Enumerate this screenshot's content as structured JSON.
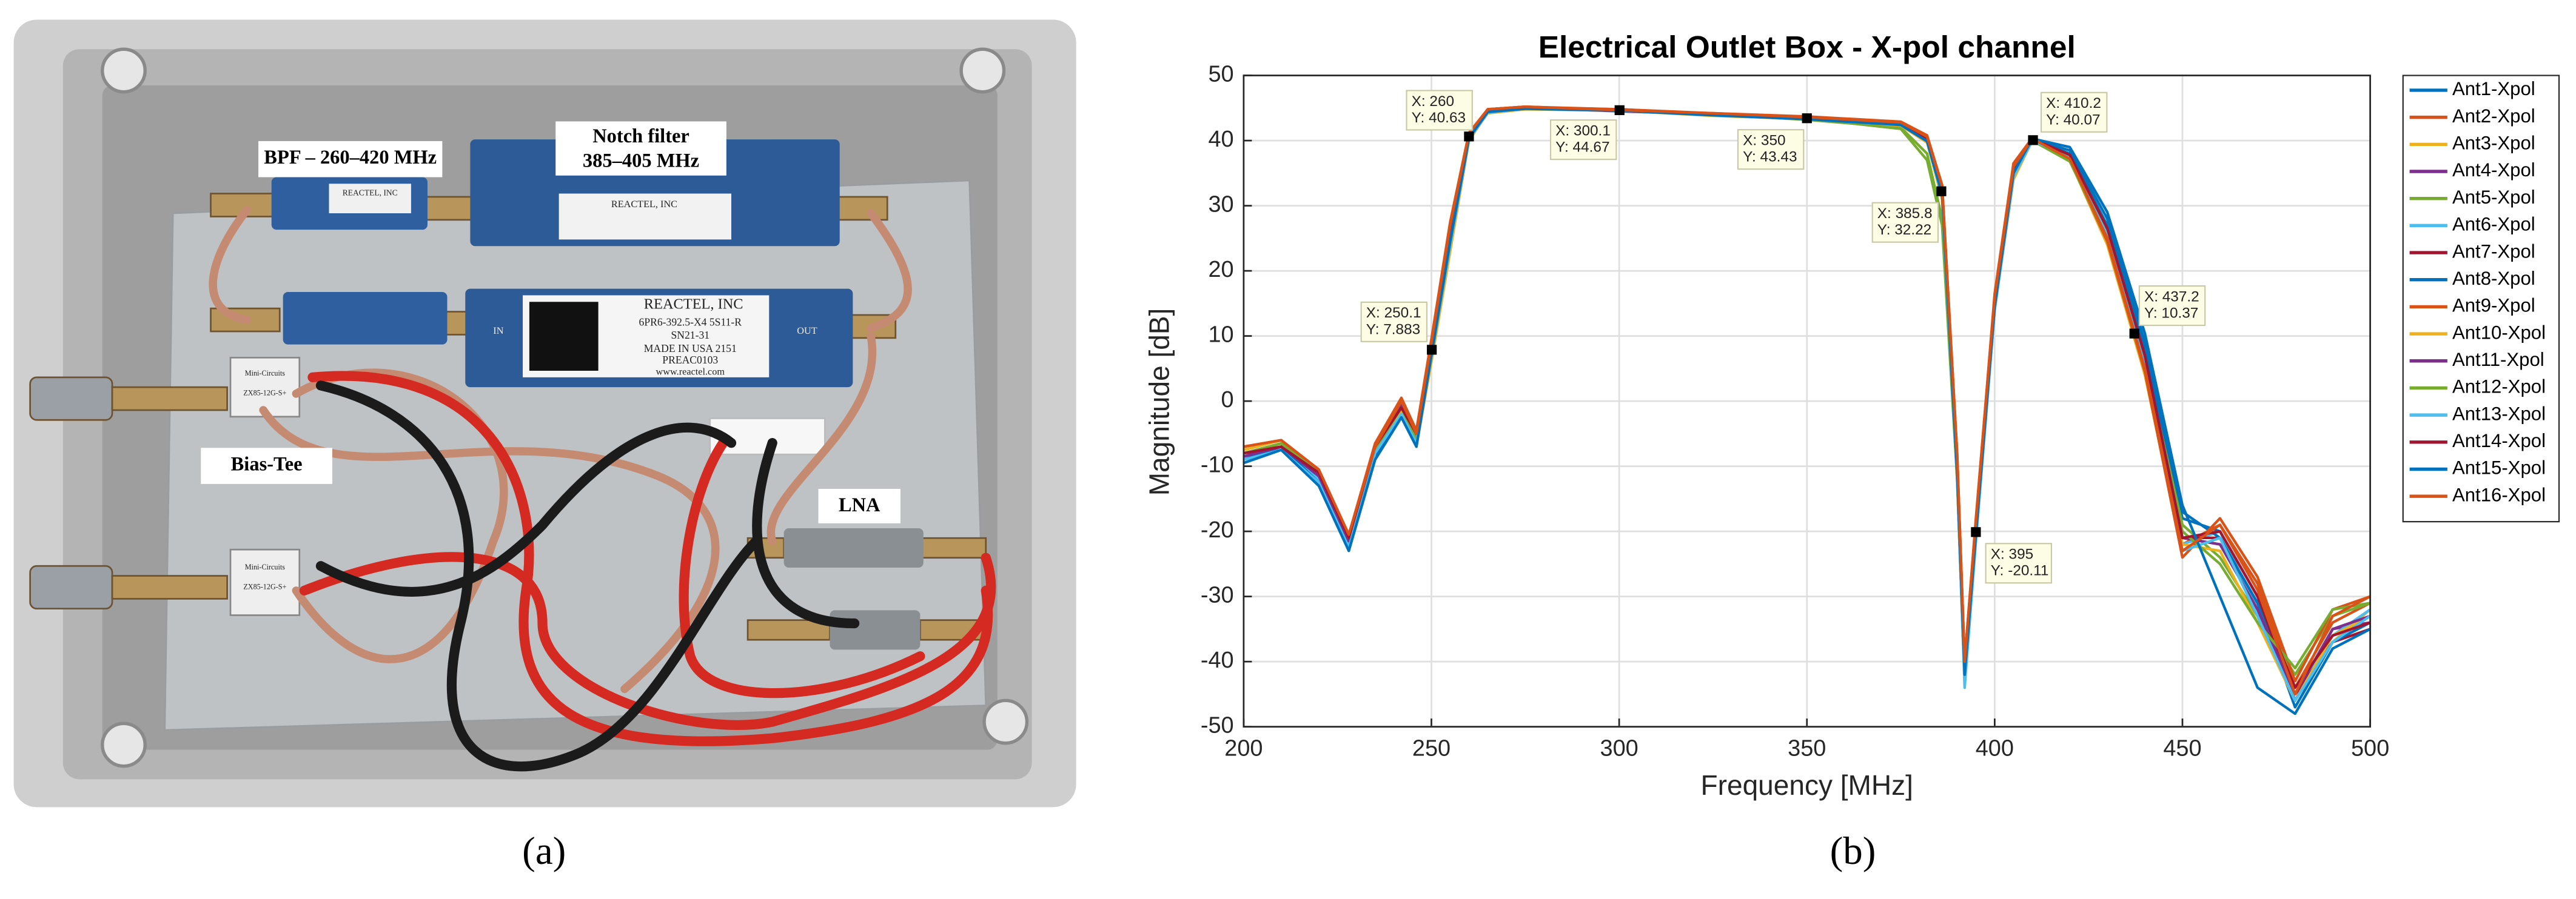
{
  "photo": {
    "labels": {
      "bpf": "BPF – 260–420 MHz",
      "notch_1": "Notch filter",
      "notch_2": "385–405 MHz",
      "bias_tee": "Bias-Tee",
      "lna": "LNA"
    },
    "device_text": [
      "REACTEL, INC",
      "6PR6-392.5-X4 5S11-R",
      "SN21-31",
      "MADE IN USA 2151",
      "PREAC0103",
      "www.reactel.com",
      "IN",
      "OUT",
      "Mini-Circuits",
      "ZX85-12G-S+"
    ]
  },
  "captions": [
    "(a)",
    "(b)"
  ],
  "chart_data": {
    "type": "line",
    "title": "Electrical Outlet Box - X-pol channel",
    "x_label": "Frequency [MHz]",
    "y_label": "Magnitude [dB]",
    "xlim": [
      200,
      500
    ],
    "xticks": [
      200,
      250,
      300,
      350,
      400,
      450,
      500
    ],
    "ylim": [
      -50,
      50
    ],
    "yticks": [
      -50,
      -40,
      -30,
      -20,
      -10,
      0,
      10,
      20,
      30,
      40,
      50
    ],
    "grid": true,
    "legend": "outside-right",
    "x": [
      200,
      210,
      220,
      228,
      235,
      242,
      246,
      250,
      255,
      260,
      265,
      275,
      300,
      325,
      350,
      375,
      382,
      386,
      390,
      392,
      395,
      400,
      405,
      410,
      420,
      430,
      440,
      450,
      460,
      470,
      480,
      490,
      500
    ],
    "series": [
      {
        "name": "Ant1-Xpol",
        "color": "#0072BD",
        "values": [
          -9,
          -7,
          -12,
          -22,
          -8,
          -1,
          -6,
          7.9,
          25,
          40.6,
          44.5,
          45,
          44.7,
          44,
          43.4,
          42.5,
          40,
          32.2,
          -10,
          -42,
          -20.1,
          15,
          35,
          40.1,
          38,
          27,
          8,
          -18,
          -20,
          -30,
          -46,
          -36,
          -33
        ]
      },
      {
        "name": "Ant2-Xpol",
        "color": "#D95319",
        "values": [
          -8,
          -6.5,
          -11,
          -21,
          -7,
          0,
          -5,
          9,
          27,
          41,
          44.8,
          45.2,
          44.6,
          44.1,
          43.6,
          42.8,
          40.5,
          33,
          -8,
          -40,
          -18,
          16,
          36,
          40.2,
          37,
          25,
          5,
          -22,
          -19,
          -28,
          -44,
          -34,
          -31
        ]
      },
      {
        "name": "Ant3-Xpol",
        "color": "#EDB120",
        "values": [
          -7,
          -6,
          -11,
          -21,
          -8,
          -2,
          -7,
          6,
          23,
          40,
          44.3,
          44.9,
          44.7,
          43.9,
          43.3,
          42.4,
          39.8,
          31,
          -12,
          -43,
          -21,
          14,
          34,
          40,
          37,
          24,
          4,
          -23,
          -21,
          -33,
          -45,
          -37,
          -32
        ]
      },
      {
        "name": "Ant4-Xpol",
        "color": "#7E2F8E",
        "values": [
          -8.5,
          -7,
          -12,
          -22,
          -7,
          -1,
          -5,
          8.5,
          26,
          40.8,
          44.6,
          45,
          44.5,
          44,
          43.5,
          42.6,
          40.2,
          32.5,
          -9,
          -41,
          -19,
          15.5,
          35.5,
          40.2,
          37.5,
          25.5,
          5.5,
          -21,
          -22,
          -31,
          -46,
          -35,
          -34
        ]
      },
      {
        "name": "Ant5-Xpol",
        "color": "#77AC30",
        "values": [
          -7.5,
          -6,
          -11.5,
          -21.5,
          -7.5,
          -1.5,
          -6,
          7.5,
          24.5,
          40.5,
          44.4,
          45.1,
          44.6,
          44,
          43.2,
          42,
          38,
          28,
          -11,
          -42,
          -20,
          15,
          35,
          40.1,
          37,
          26,
          6,
          -19,
          -24,
          -33,
          -42,
          -33,
          -31
        ]
      },
      {
        "name": "Ant6-Xpol",
        "color": "#4DBEEE",
        "values": [
          -9,
          -7.5,
          -12,
          -22,
          -8,
          -2,
          -6,
          7,
          24,
          40.3,
          44.4,
          45,
          44.6,
          43.9,
          43.4,
          42.5,
          40,
          32,
          -11,
          -43,
          -21,
          14.5,
          34.5,
          40,
          37.2,
          25,
          5,
          -22,
          -20,
          -32,
          -45,
          -36,
          -32
        ]
      },
      {
        "name": "Ant7-Xpol",
        "color": "#A2142F",
        "values": [
          -8,
          -7,
          -11,
          -21,
          -7,
          -1,
          -5,
          8.2,
          25.5,
          40.7,
          44.6,
          45.1,
          44.8,
          44.1,
          43.5,
          42.6,
          40.3,
          32.6,
          -9,
          -41,
          -19.5,
          16,
          36,
          40.3,
          37.8,
          26.5,
          7,
          -21,
          -21,
          -31,
          -45,
          -37,
          -35
        ]
      },
      {
        "name": "Ant8-Xpol",
        "color": "#0072BD",
        "values": [
          -9,
          -7,
          -12.5,
          -22.5,
          -8.5,
          -2,
          -6.5,
          7.2,
          24.5,
          40.4,
          44.4,
          44.9,
          44.6,
          43.9,
          43.3,
          42.4,
          39.9,
          31.8,
          -11,
          -42,
          -20.5,
          14.5,
          35,
          40.1,
          38.5,
          28,
          9,
          -17,
          -21,
          -31,
          -47,
          -37,
          -34
        ]
      },
      {
        "name": "Ant9-Xpol",
        "color": "#D95319",
        "values": [
          -7,
          -6,
          -10.5,
          -20.5,
          -6.5,
          0.5,
          -4.5,
          9.5,
          27.5,
          41.2,
          44.8,
          45.2,
          44.8,
          44.2,
          43.7,
          42.9,
          40.8,
          33.2,
          -8,
          -40,
          -18.5,
          16.5,
          36.5,
          40.4,
          37,
          24.5,
          4.5,
          -24,
          -18,
          -27,
          -43,
          -32,
          -30
        ]
      },
      {
        "name": "Ant10-Xpol",
        "color": "#EDB120",
        "values": [
          -7.5,
          -6,
          -11,
          -21,
          -7.5,
          -1.5,
          -6.5,
          6.5,
          23.5,
          40.1,
          44.2,
          44.8,
          44.6,
          43.8,
          43.3,
          42.3,
          39.7,
          31.2,
          -12,
          -43,
          -21,
          14,
          34.5,
          40,
          37.2,
          25,
          5,
          -22,
          -23,
          -34,
          -46,
          -36,
          -33
        ]
      },
      {
        "name": "Ant11-Xpol",
        "color": "#7E2F8E",
        "values": [
          -8.5,
          -7,
          -11.5,
          -21.5,
          -7,
          -0.5,
          -5.5,
          8.5,
          26,
          40.9,
          44.7,
          45.1,
          44.7,
          44.1,
          43.6,
          42.7,
          40.4,
          32.8,
          -9,
          -41,
          -19,
          15.5,
          35.5,
          40.2,
          37.4,
          25.8,
          6,
          -21,
          -22,
          -32,
          -45,
          -35,
          -33
        ]
      },
      {
        "name": "Ant12-Xpol",
        "color": "#77AC30",
        "values": [
          -8,
          -6.5,
          -11,
          -21,
          -7.5,
          -1,
          -6,
          7.8,
          25,
          40.6,
          44.5,
          45,
          44.6,
          44,
          43.4,
          41.8,
          37,
          27,
          -12,
          -43,
          -20.5,
          15,
          35,
          40,
          36.8,
          25,
          5,
          -20,
          -25,
          -34,
          -41,
          -32,
          -31
        ]
      },
      {
        "name": "Ant13-Xpol",
        "color": "#4DBEEE",
        "values": [
          -9,
          -7.5,
          -12.5,
          -22.5,
          -8,
          -2,
          -6.5,
          7,
          24,
          40.2,
          44.3,
          44.9,
          44.6,
          43.9,
          43.3,
          42.4,
          39.9,
          31.5,
          -11.5,
          -44,
          -21.5,
          14,
          34.5,
          40,
          37.6,
          25.5,
          5.5,
          -23,
          -21,
          -33,
          -46,
          -37,
          -33
        ]
      },
      {
        "name": "Ant14-Xpol",
        "color": "#A2142F",
        "values": [
          -8,
          -7,
          -11,
          -21,
          -7,
          -1,
          -5,
          8.3,
          25.8,
          40.8,
          44.6,
          45.1,
          44.7,
          44.1,
          43.5,
          42.7,
          40.4,
          32.7,
          -9,
          -41,
          -19.5,
          15.8,
          35.8,
          40.3,
          37.8,
          26.5,
          7,
          -21,
          -20,
          -30,
          -44,
          -36,
          -34
        ]
      },
      {
        "name": "Ant15-Xpol",
        "color": "#0072BD",
        "values": [
          -9.5,
          -7.5,
          -13,
          -23,
          -9,
          -2.5,
          -7,
          7,
          24.5,
          40.4,
          44.4,
          44.9,
          44.6,
          43.9,
          43.3,
          42.4,
          39.9,
          31.8,
          -11,
          -42,
          -20.5,
          14.5,
          35,
          40.3,
          39,
          29,
          10.4,
          -16,
          -30,
          -44,
          -48,
          -38,
          -35
        ]
      },
      {
        "name": "Ant16-Xpol",
        "color": "#D95319",
        "values": [
          -7,
          -6,
          -10.5,
          -20.5,
          -7,
          0,
          -5,
          9,
          27,
          41.1,
          44.8,
          45.2,
          44.7,
          44.2,
          43.6,
          42.8,
          40.6,
          33,
          -8.5,
          -40,
          -18.5,
          16,
          36,
          40.3,
          37.2,
          25,
          5,
          -23,
          -19,
          -29,
          -45,
          -33,
          -30
        ]
      }
    ],
    "annotations": [
      {
        "x": 260,
        "y": 40.63,
        "text": [
          "X: 260",
          "Y: 40.63"
        ]
      },
      {
        "x": 300.1,
        "y": 44.67,
        "text": [
          "X: 300.1",
          "Y: 44.67"
        ]
      },
      {
        "x": 350,
        "y": 43.43,
        "text": [
          "X: 350",
          "Y: 43.43"
        ]
      },
      {
        "x": 385.8,
        "y": 32.22,
        "text": [
          "X: 385.8",
          "Y: 32.22"
        ]
      },
      {
        "x": 250.1,
        "y": 7.883,
        "text": [
          "X: 250.1",
          "Y: 7.883"
        ]
      },
      {
        "x": 395,
        "y": -20.11,
        "text": [
          "X: 395",
          "Y: -20.11"
        ]
      },
      {
        "x": 410.2,
        "y": 40.07,
        "text": [
          "X: 410.2",
          "Y: 40.07"
        ]
      },
      {
        "x": 437.2,
        "y": 10.37,
        "text": [
          "X: 437.2",
          "Y: 10.37"
        ]
      }
    ]
  }
}
